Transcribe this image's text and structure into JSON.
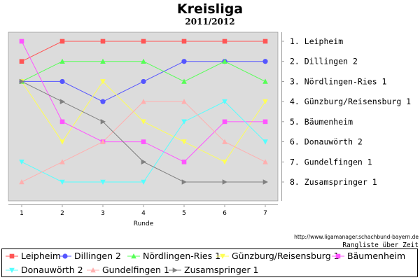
{
  "header": {
    "title": "Kreisliga",
    "subtitle": "2011/2012"
  },
  "footer": {
    "source": "http://www.ligamanager.schachbund-bayern.de",
    "caption": "Rangliste über Zeit"
  },
  "chart_data": {
    "type": "line",
    "title": "Kreisliga",
    "subtitle": "2011/2012",
    "xlabel": "Runde",
    "ylabel": "",
    "x": [
      1,
      2,
      3,
      4,
      5,
      6,
      7
    ],
    "xlim": [
      1,
      7
    ],
    "ylim": [
      1,
      8
    ],
    "y_inverted": true,
    "grid": false,
    "legend_position": "bottom",
    "right_labels": [
      "1. Leipheim",
      "2. Dillingen 2",
      "3. Nördlingen-Ries 1",
      "4. Günzburg/Reisensburg 1",
      "5. Bäumenheim",
      "6. Donauwörth 2",
      "7. Gundelfingen 1",
      "8. Zusamspringer 1"
    ],
    "series": [
      {
        "name": "Leipheim",
        "color": "#ff5555",
        "marker": "square",
        "values": [
          2,
          1,
          1,
          1,
          1,
          1,
          1
        ]
      },
      {
        "name": "Dillingen 2",
        "color": "#5555ff",
        "marker": "circle",
        "values": [
          3,
          3,
          4,
          3,
          2,
          2,
          2
        ]
      },
      {
        "name": "Nördlingen-Ries 1",
        "color": "#55ff55",
        "marker": "triangle-up",
        "values": [
          3,
          2,
          2,
          2,
          3,
          2,
          3
        ]
      },
      {
        "name": "Günzburg/Reisensburg 1",
        "color": "#ffff55",
        "marker": "triangle-down",
        "values": [
          3,
          6,
          3,
          5,
          6,
          7,
          4
        ]
      },
      {
        "name": "Bäumenheim",
        "color": "#ff55ff",
        "marker": "square",
        "values": [
          1,
          5,
          6,
          6,
          7,
          5,
          5
        ]
      },
      {
        "name": "Donauwörth 2",
        "color": "#55ffff",
        "marker": "triangle-down",
        "values": [
          7,
          8,
          8,
          8,
          5,
          4,
          6
        ]
      },
      {
        "name": "Gundelfingen 1",
        "color": "#ffafaf",
        "marker": "triangle-up",
        "values": [
          8,
          7,
          6,
          4,
          4,
          6,
          7
        ]
      },
      {
        "name": "Zusamspringer 1",
        "color": "#808080",
        "marker": "triangle-right",
        "values": [
          3,
          4,
          5,
          7,
          8,
          8,
          8
        ]
      }
    ]
  }
}
